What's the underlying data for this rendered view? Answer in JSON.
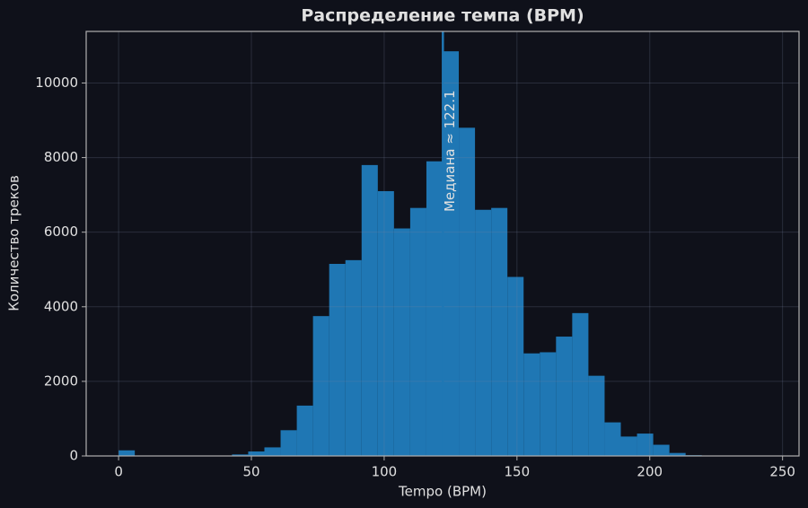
{
  "chart_data": {
    "type": "histogram",
    "title": "Распределение темпа (BPM)",
    "x_label": "Tempo (BPM)",
    "y_label": "Количество треков",
    "bins": [
      0,
      6.1,
      12.2,
      18.3,
      24.4,
      30.5,
      36.6,
      42.7,
      48.8,
      54.9,
      61,
      67.1,
      73.2,
      79.3,
      85.4,
      91.5,
      97.6,
      103.7,
      109.8,
      115.9,
      122,
      128.1,
      134.2,
      140.3,
      146.4,
      152.5,
      158.6,
      164.7,
      170.8,
      176.9,
      183,
      189.1,
      195.2,
      201.3,
      207.4,
      213.5,
      219.6,
      225.7,
      231.8,
      237.9,
      244
    ],
    "values": [
      150,
      0,
      0,
      0,
      0,
      0,
      0,
      40,
      120,
      230,
      690,
      1350,
      3750,
      5150,
      5250,
      7800,
      7100,
      6100,
      6650,
      7900,
      10850,
      8800,
      6600,
      6650,
      4800,
      2750,
      2780,
      3200,
      3830,
      2150,
      900,
      520,
      600,
      300,
      80,
      20,
      5,
      0,
      0,
      2
    ],
    "color": "#1f77b4",
    "median": 122.1,
    "median_label": "Медиана ≈ 122.1",
    "xlim": [
      -12.2,
      256.2
    ],
    "ylim": [
      0,
      11383
    ],
    "xticks": [
      0,
      50,
      100,
      150,
      200,
      250
    ],
    "yticks": [
      0,
      2000,
      4000,
      6000,
      8000,
      10000
    ],
    "grid": true
  }
}
